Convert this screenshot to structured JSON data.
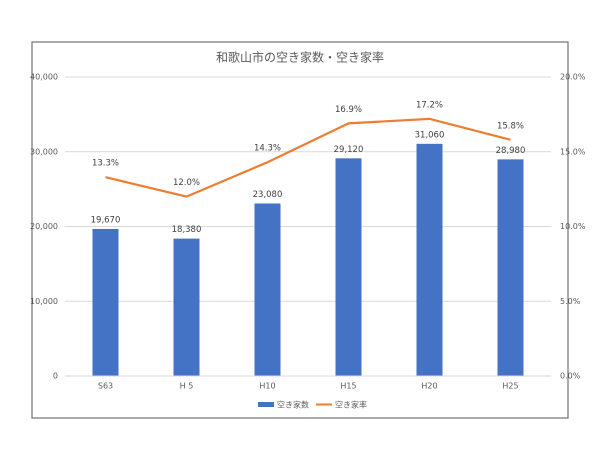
{
  "chart_data": {
    "type": "bar",
    "title": "和歌山市の空き家数・空き家率",
    "categories": [
      "S63",
      "H 5",
      "H10",
      "H15",
      "H20",
      "H25"
    ],
    "series": [
      {
        "name": "空き家数",
        "type": "bar",
        "color": "#4472c4",
        "axis": "y",
        "values": [
          19670,
          18380,
          23080,
          29120,
          31060,
          28980
        ],
        "value_labels": [
          "19,670",
          "18,380",
          "23,080",
          "29,120",
          "31,060",
          "28,980"
        ]
      },
      {
        "name": "空き家率",
        "type": "line",
        "color": "#ed7d31",
        "axis": "y2",
        "values": [
          13.3,
          12.0,
          14.3,
          16.9,
          17.2,
          15.8
        ],
        "value_labels": [
          "13.3%",
          "12.0%",
          "14.3%",
          "16.9%",
          "17.2%",
          "15.8%"
        ]
      }
    ],
    "ylim": [
      0,
      40000
    ],
    "yticks": [
      0,
      {
        "value": 10000,
        "label": "10,000"
      },
      {
        "value": 20000,
        "label": "20,000"
      },
      {
        "value": 30000,
        "label": "30,000"
      },
      {
        "value": 40000,
        "label": "40,000"
      }
    ],
    "y2lim": [
      0,
      20
    ],
    "y2ticks": [
      {
        "value": 0,
        "label": "0.0%"
      },
      {
        "value": 5,
        "label": "5.0%"
      },
      {
        "value": 10,
        "label": "10.0%"
      },
      {
        "value": 15,
        "label": "15.0%"
      },
      {
        "value": 20,
        "label": "20.0%"
      }
    ],
    "grid": true,
    "legend": "bottom"
  }
}
